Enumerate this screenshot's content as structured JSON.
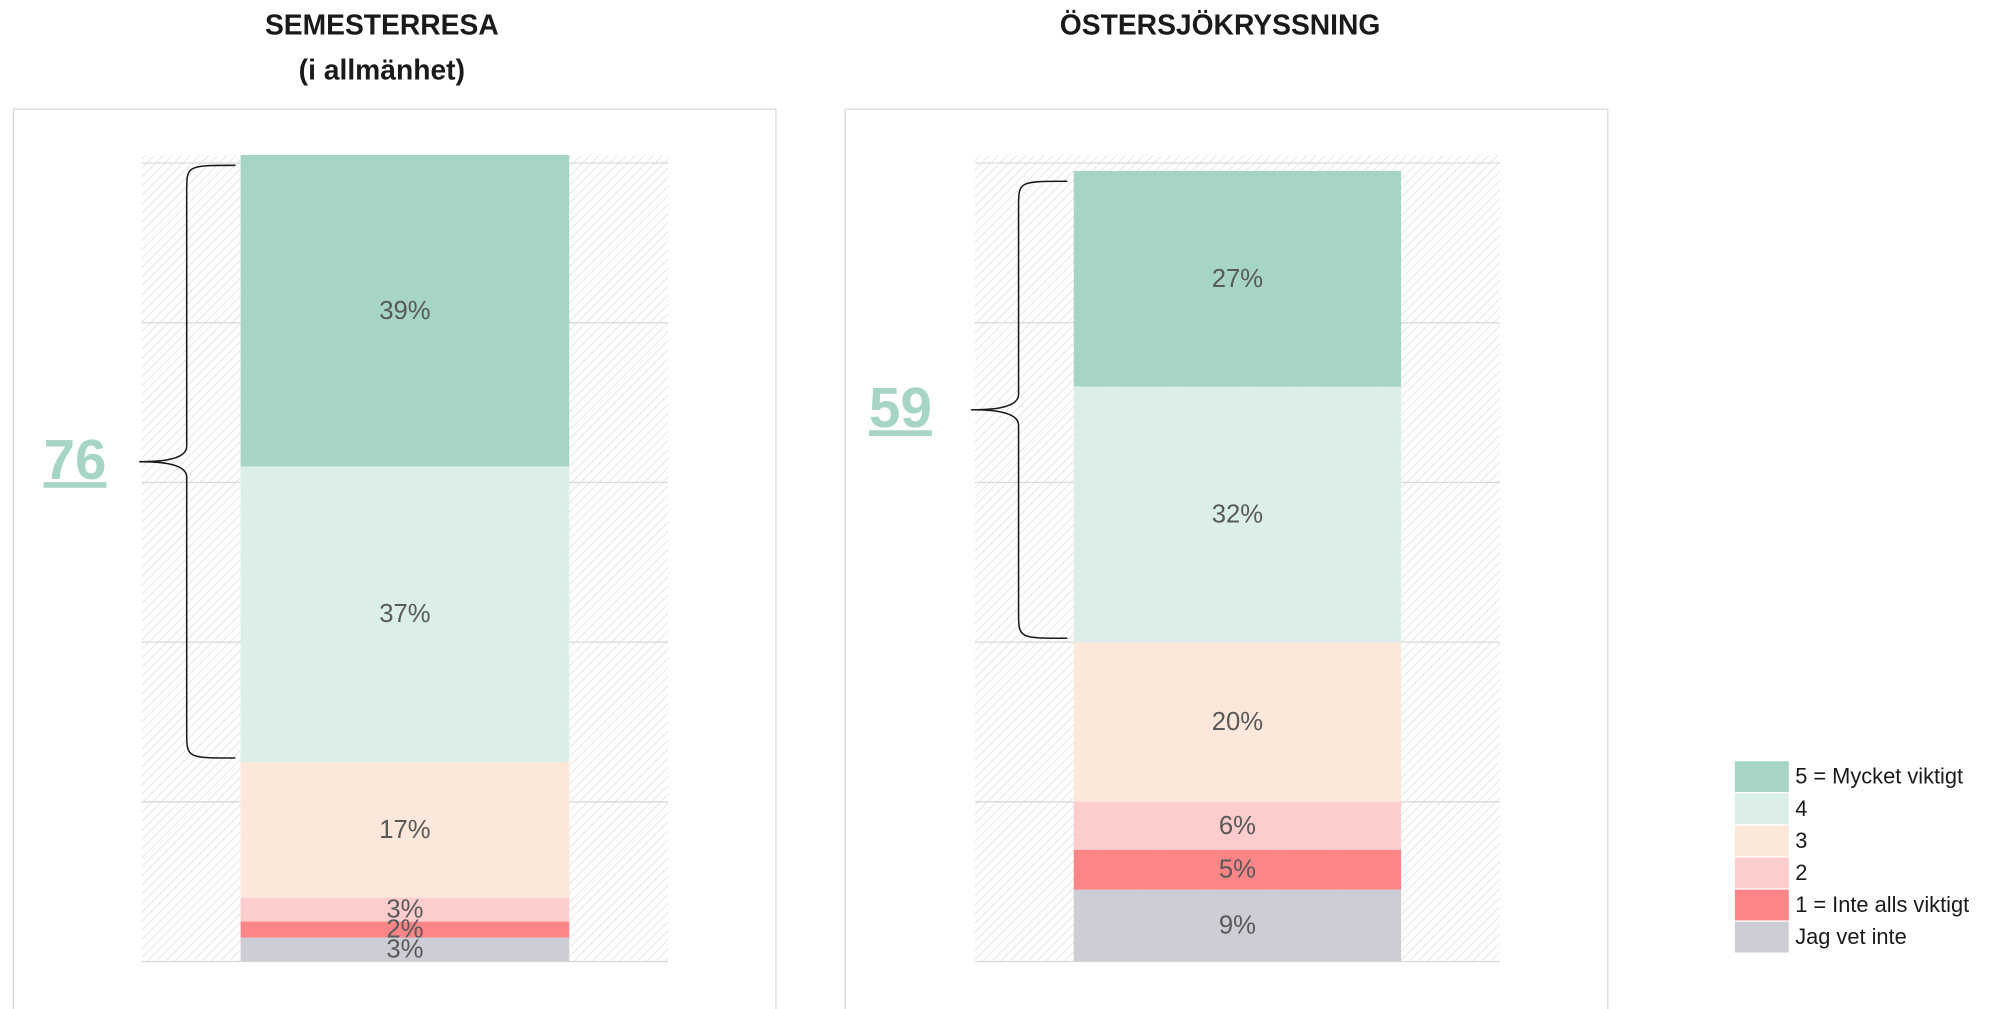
{
  "chart_data": [
    {
      "type": "stacked_bar",
      "title": "SEMESTERRESA",
      "subtitle": "(i allmänhet)",
      "ylim": [
        0,
        100
      ],
      "yticks": [
        0,
        20,
        40,
        60,
        80,
        100
      ],
      "grid": true,
      "annotation": 76,
      "series": [
        {
          "name": "5 = Mycket viktigt",
          "color": "#a6d4c7",
          "values": [
            39
          ],
          "value_labels": [
            "39%"
          ]
        },
        {
          "name": "4",
          "color": "#dbeee9",
          "values": [
            37
          ],
          "value_labels": [
            "37%"
          ]
        },
        {
          "name": "3",
          "color": "#fce8da",
          "values": [
            17
          ],
          "value_labels": [
            "17%"
          ]
        },
        {
          "name": "2",
          "color": "#fdcccd",
          "values": [
            3
          ],
          "value_labels": [
            "3%"
          ]
        },
        {
          "name": "1 = Inte alls viktigt",
          "color": "#fc8587",
          "values": [
            2
          ],
          "value_labels": [
            "2%"
          ]
        },
        {
          "name": "Jag vet inte",
          "color": "#cdcdd6",
          "values": [
            3
          ],
          "value_labels": [
            "3%"
          ]
        }
      ]
    },
    {
      "type": "stacked_bar",
      "title": "ÖSTERSJÖKRYSSNING",
      "ylim": [
        0,
        100
      ],
      "yticks": [
        0,
        20,
        40,
        60,
        80,
        100
      ],
      "grid": true,
      "annotation": 59,
      "series": [
        {
          "name": "5 = Mycket viktigt",
          "color": "#a6d4c7",
          "values": [
            27
          ],
          "value_labels": [
            "27%"
          ]
        },
        {
          "name": "4",
          "color": "#dbeee9",
          "values": [
            32
          ],
          "value_labels": [
            "32%"
          ]
        },
        {
          "name": "3",
          "color": "#fce8da",
          "values": [
            20
          ],
          "value_labels": [
            "20%"
          ]
        },
        {
          "name": "2",
          "color": "#fdcccd",
          "values": [
            6
          ],
          "value_labels": [
            "6%"
          ]
        },
        {
          "name": "1 = Inte alls viktigt",
          "color": "#fc8587",
          "values": [
            5
          ],
          "value_labels": [
            "5%"
          ]
        },
        {
          "name": "Jag vet inte",
          "color": "#cdcdd6",
          "values": [
            9
          ],
          "value_labels": [
            "9%"
          ]
        }
      ]
    }
  ]
}
